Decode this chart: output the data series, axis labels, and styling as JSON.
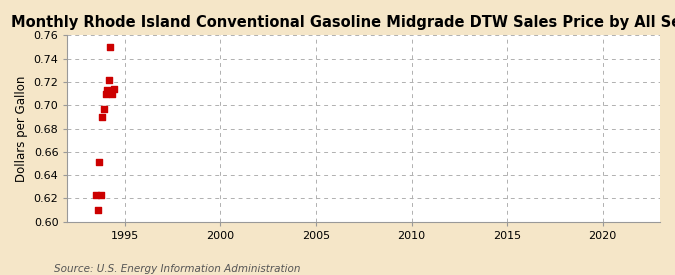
{
  "title": "Monthly Rhode Island Conventional Gasoline Midgrade DTW Sales Price by All Sellers",
  "ylabel": "Dollars per Gallon",
  "source": "Source: U.S. Energy Information Administration",
  "fig_background_color": "#f5e6c8",
  "plot_background_color": "#ffffff",
  "scatter_color": "#cc0000",
  "x_values": [
    1993.5,
    1993.58,
    1993.67,
    1993.75,
    1993.83,
    1993.92,
    1994.0,
    1994.08,
    1994.17,
    1994.25,
    1994.33,
    1994.42
  ],
  "y_values": [
    0.623,
    0.61,
    0.651,
    0.623,
    0.69,
    0.697,
    0.71,
    0.713,
    0.722,
    0.75,
    0.71,
    0.714
  ],
  "xlim": [
    1992,
    2023
  ],
  "ylim": [
    0.6,
    0.76
  ],
  "xticks": [
    1995,
    2000,
    2005,
    2010,
    2015,
    2020
  ],
  "yticks": [
    0.6,
    0.62,
    0.64,
    0.66,
    0.68,
    0.7,
    0.72,
    0.74,
    0.76
  ],
  "title_fontsize": 10.5,
  "label_fontsize": 8.5,
  "tick_fontsize": 8,
  "source_fontsize": 7.5,
  "marker_size": 16
}
